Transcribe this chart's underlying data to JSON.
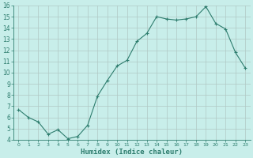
{
  "x": [
    0,
    1,
    2,
    3,
    4,
    5,
    6,
    7,
    8,
    9,
    10,
    11,
    12,
    13,
    14,
    15,
    16,
    17,
    18,
    19,
    20,
    21,
    22,
    23
  ],
  "y": [
    6.7,
    6.0,
    5.6,
    4.5,
    4.9,
    4.1,
    4.3,
    5.3,
    7.9,
    9.3,
    10.6,
    11.1,
    12.8,
    13.5,
    15.0,
    14.8,
    14.7,
    14.8,
    15.0,
    15.9,
    14.4,
    13.9,
    11.8,
    10.4
  ],
  "xlim": [
    -0.5,
    23.5
  ],
  "ylim": [
    4,
    16
  ],
  "yticks": [
    4,
    5,
    6,
    7,
    8,
    9,
    10,
    11,
    12,
    13,
    14,
    15,
    16
  ],
  "xticks": [
    0,
    1,
    2,
    3,
    4,
    5,
    6,
    7,
    8,
    9,
    10,
    11,
    12,
    13,
    14,
    15,
    16,
    17,
    18,
    19,
    20,
    21,
    22,
    23
  ],
  "xlabel": "Humidex (Indice chaleur)",
  "line_color": "#2E7D6E",
  "marker": "+",
  "bg_color": "#C8EEEA",
  "grid_color": "#B0C8C4",
  "tick_color": "#2E7D6E",
  "spine_color": "#2E7D6E"
}
